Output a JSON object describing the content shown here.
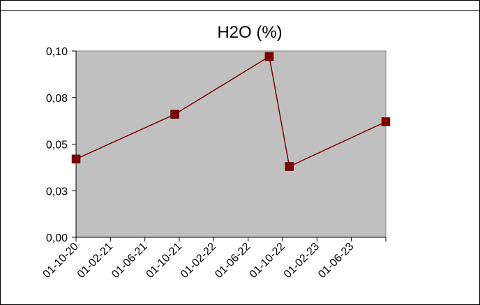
{
  "chart_data": {
    "type": "line",
    "title": "H2O (%)",
    "xlabel": "",
    "ylabel": "",
    "x_tick_labels": [
      "01-10-20",
      "01-02-21",
      "01-06-21",
      "01-10-21",
      "01-02-22",
      "01-06-22",
      "01-10-22",
      "01-02-23",
      "01-06-23"
    ],
    "y_tick_labels": [
      "0,00",
      "0,03",
      "0,05",
      "0,08",
      "0,10"
    ],
    "x_range": [
      "2020-10-01",
      "2023-10-01"
    ],
    "ylim": [
      0,
      0.1
    ],
    "grid": false,
    "plot_background": "#c0c0c0",
    "series": [
      {
        "color": "#800000",
        "points": [
          {
            "x": "2020-10-01",
            "y": 0.042
          },
          {
            "x": "2021-09-15",
            "y": 0.066
          },
          {
            "x": "2022-08-15",
            "y": 0.097
          },
          {
            "x": "2022-10-25",
            "y": 0.038
          },
          {
            "x": "2023-10-01",
            "y": 0.062
          }
        ]
      }
    ]
  }
}
